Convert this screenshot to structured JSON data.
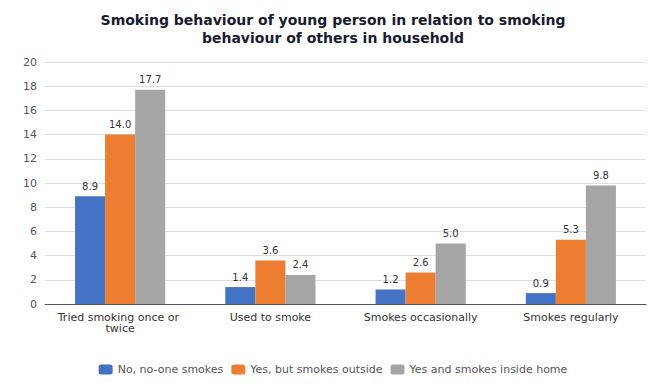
{
  "chart_data": {
    "type": "bar",
    "title": "Smoking behaviour of young person in relation to smoking\nbehaviour of others in household",
    "categories": [
      "Tried smoking once or twice",
      "Used to smoke",
      "Smokes occasionally",
      "Smokes regularly"
    ],
    "series": [
      {
        "name": "No, no-one smokes",
        "color": "#4472C4",
        "values": [
          8.9,
          1.4,
          1.2,
          0.9
        ],
        "value_labels": [
          "8.9",
          "1.4",
          "1.2",
          "0.9"
        ]
      },
      {
        "name": "Yes, but smokes outside",
        "color": "#ED7D31",
        "values": [
          14.0,
          3.6,
          2.6,
          5.3
        ],
        "value_labels": [
          "14.0",
          "3.6",
          "2.6",
          "5.3"
        ]
      },
      {
        "name": "Yes and smokes inside home",
        "color": "#A5A5A5",
        "values": [
          17.7,
          2.4,
          5.0,
          9.8
        ],
        "value_labels": [
          "17.7",
          "2.4",
          "5.0",
          "9.8"
        ]
      }
    ],
    "ylim": [
      0,
      20
    ],
    "yticks": [
      0,
      2,
      4,
      6,
      8,
      10,
      12,
      14,
      16,
      18,
      20
    ],
    "grid": true,
    "legend": "bottom",
    "data_labels": true
  }
}
